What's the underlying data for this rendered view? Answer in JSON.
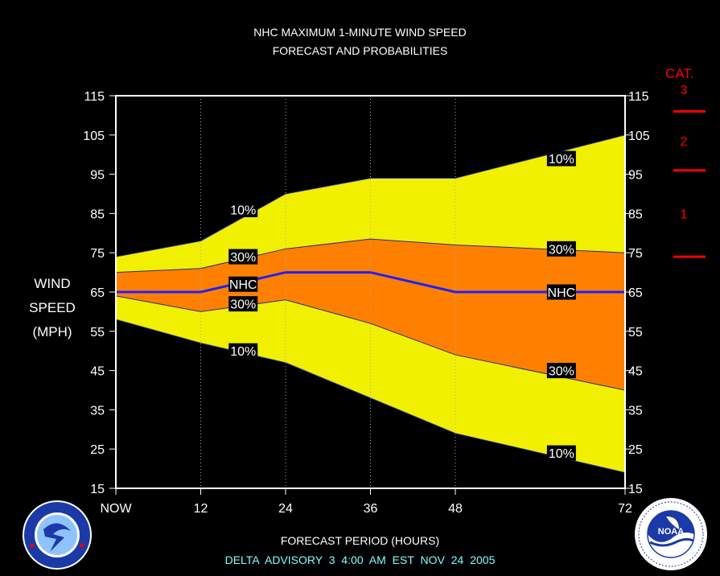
{
  "title_line1": "NHC MAXIMUM 1-MINUTE WIND SPEED",
  "title_line2": "FORECAST AND PROBABILITIES",
  "ylabel_lines": [
    "WIND",
    "SPEED",
    "(MPH)"
  ],
  "xlabel": "FORECAST PERIOD (HOURS)",
  "advisory": "DELTA   ADVISORY  3  4:00  AM  EST  NOV  24  2005",
  "category_title": "CAT.",
  "category_labels": [
    "3",
    "2",
    "1"
  ],
  "category_thresholds_mph": [
    111,
    96,
    74
  ],
  "colors": {
    "ten_pct_band": "#f0f000",
    "thirty_pct_band": "#ff8000",
    "nhc_line": "#2020ff",
    "category": "#ff0000",
    "advisory_text": "#7fffff"
  },
  "chart_data": {
    "type": "area",
    "title": "NHC MAXIMUM 1-MINUTE WIND SPEED FORECAST AND PROBABILITIES",
    "xlabel": "FORECAST PERIOD (HOURS)",
    "ylabel": "WIND SPEED (MPH)",
    "xlim": [
      0,
      72
    ],
    "ylim": [
      15,
      115
    ],
    "x_ticks": [
      0,
      12,
      24,
      36,
      48,
      72
    ],
    "x_tick_labels": [
      "NOW",
      "12",
      "24",
      "36",
      "48",
      "72"
    ],
    "y_ticks": [
      15,
      25,
      35,
      45,
      55,
      65,
      75,
      85,
      95,
      105,
      115
    ],
    "x": [
      0,
      12,
      24,
      36,
      48,
      72
    ],
    "series": [
      {
        "name": "10% upper",
        "values": [
          74,
          78,
          90,
          94,
          94,
          105
        ]
      },
      {
        "name": "30% upper",
        "values": [
          70,
          71,
          76,
          78.5,
          77,
          75
        ]
      },
      {
        "name": "NHC",
        "values": [
          65,
          65,
          70,
          70,
          65,
          65
        ]
      },
      {
        "name": "30% lower",
        "values": [
          64,
          60,
          63,
          57,
          49,
          40
        ]
      },
      {
        "name": "10% lower",
        "values": [
          58,
          52,
          47,
          38,
          29,
          19
        ]
      }
    ],
    "annotations": [
      {
        "text": "10%",
        "x": 18,
        "y": 86
      },
      {
        "text": "30%",
        "x": 18,
        "y": 74
      },
      {
        "text": "NHC",
        "x": 18,
        "y": 67
      },
      {
        "text": "30%",
        "x": 18,
        "y": 62
      },
      {
        "text": "10%",
        "x": 18,
        "y": 50
      },
      {
        "text": "10%",
        "x": 63,
        "y": 99
      },
      {
        "text": "30%",
        "x": 63,
        "y": 76
      },
      {
        "text": "NHC",
        "x": 63,
        "y": 65
      },
      {
        "text": "30%",
        "x": 63,
        "y": 45
      },
      {
        "text": "10%",
        "x": 63,
        "y": 24
      }
    ],
    "grid": "vertical dotted"
  }
}
